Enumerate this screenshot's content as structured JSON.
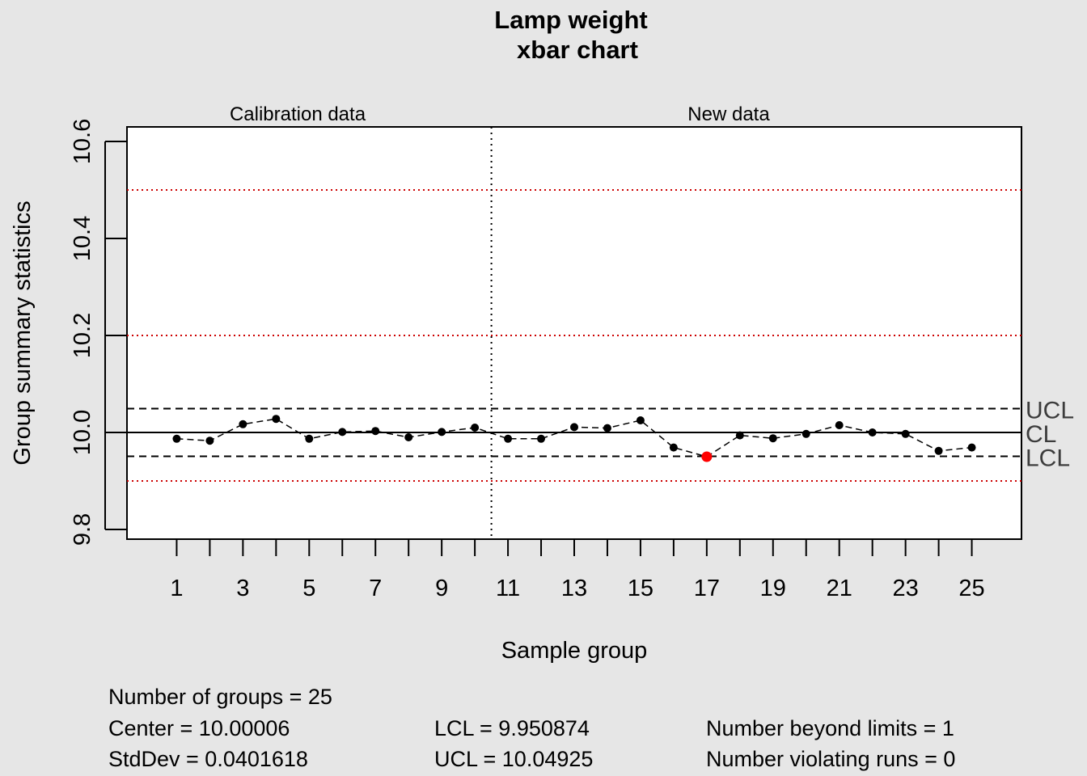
{
  "chart_data": {
    "type": "line",
    "title": "Lamp weight",
    "subtitle": "xbar chart",
    "xlabel": "Sample group",
    "ylabel": "Group summary statistics",
    "section_labels": [
      "Calibration data",
      "New data"
    ],
    "x": [
      1,
      2,
      3,
      4,
      5,
      6,
      7,
      8,
      9,
      10,
      11,
      12,
      13,
      14,
      15,
      16,
      17,
      18,
      19,
      20,
      21,
      22,
      23,
      24,
      25
    ],
    "x_tick_labels": [
      "1",
      "3",
      "5",
      "7",
      "9",
      "11",
      "13",
      "15",
      "17",
      "19",
      "21",
      "23",
      "25"
    ],
    "y_tick_labels": [
      "9.8",
      "10.0",
      "10.2",
      "10.4",
      "10.6"
    ],
    "ylim": [
      9.78,
      10.63
    ],
    "series": [
      {
        "values": [
          9.987,
          9.983,
          10.017,
          10.028,
          9.987,
          10.001,
          10.003,
          9.99,
          10.001,
          10.01,
          9.987,
          9.987,
          10.011,
          10.009,
          10.025,
          9.969,
          9.95,
          9.994,
          9.988,
          9.997,
          10.015,
          10.0,
          9.997,
          9.962,
          9.969
        ],
        "out_of_control_index": [
          16
        ]
      }
    ],
    "calibration_split_after": 10,
    "center_line": 10.00006,
    "ucl": 10.04925,
    "lcl": 9.950874,
    "spec_lines": [
      9.9,
      10.2,
      10.5
    ],
    "limit_labels": [
      "UCL",
      "CL",
      "LCL"
    ],
    "colors": {
      "point": "#000000",
      "violation": "#ff0000",
      "spec_line": "#cd0000",
      "background": "#e6e6e6",
      "plot_area": "#ffffff"
    }
  },
  "stats": {
    "groups": "Number of groups = 25",
    "center": "Center = 10.00006",
    "stddev": "StdDev = 0.0401618",
    "lcl": "LCL = 9.950874",
    "ucl": "UCL = 10.04925",
    "beyond": "Number beyond limits = 1",
    "runs": "Number violating runs = 0"
  }
}
